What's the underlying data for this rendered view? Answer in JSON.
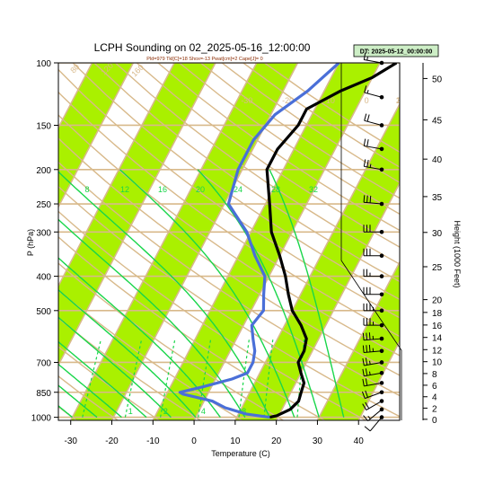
{
  "chart_data": {
    "type": "line",
    "title": "LCPH Sounding on 02_2025-05-16_12:00:00",
    "subtitle": "Pld=979 Tkl[C]=18 Shox=-13 Pwat[cm]=2 Cape[J]= 0",
    "datetime_box": "DT: 2025-05-12_00:00:00",
    "xlabel": "Temperature (C)",
    "ylabel": "P (hPa)",
    "y2label": "Height (1000 Feet)",
    "xlim": [
      -33,
      50
    ],
    "ylim": [
      1020,
      100
    ],
    "y_scale": "log",
    "x_ticks": [
      -30,
      -20,
      -10,
      0,
      10,
      20,
      30,
      40
    ],
    "p_ticks": [
      100,
      150,
      200,
      250,
      300,
      400,
      500,
      700,
      850,
      1000
    ],
    "height_ticks": [
      0,
      2,
      4,
      6,
      8,
      10,
      12,
      14,
      16,
      18,
      20,
      25,
      30,
      35,
      40,
      45,
      50
    ],
    "isotherm_labels": [
      -30,
      -20,
      -10,
      0,
      10,
      20,
      30
    ],
    "dry_adiabat_labels": [
      80,
      120,
      160
    ],
    "moist_adiabat_labels": [
      8,
      12,
      16,
      20,
      24,
      28,
      32
    ],
    "mixing_ratio_labels": [
      1,
      2,
      4,
      8
    ],
    "series": [
      {
        "name": "Temperature",
        "color": "#000000",
        "points": [
          [
            18,
            1000
          ],
          [
            19.5,
            990
          ],
          [
            22,
            950
          ],
          [
            23,
            900
          ],
          [
            22.5,
            850
          ],
          [
            22,
            800
          ],
          [
            20,
            750
          ],
          [
            18,
            700
          ],
          [
            18,
            650
          ],
          [
            17,
            600
          ],
          [
            14,
            550
          ],
          [
            10,
            500
          ],
          [
            7,
            450
          ],
          [
            4,
            400
          ],
          [
            0,
            350
          ],
          [
            -5,
            300
          ],
          [
            -9,
            250
          ],
          [
            -14,
            200
          ],
          [
            -14,
            175
          ],
          [
            -12,
            150
          ],
          [
            -12,
            135
          ],
          [
            -6,
            120
          ],
          [
            0,
            110
          ],
          [
            4,
            100
          ]
        ]
      },
      {
        "name": "Dew point",
        "color": "#4a6fd8",
        "points": [
          [
            18,
            1000
          ],
          [
            12,
            980
          ],
          [
            6,
            940
          ],
          [
            2,
            900
          ],
          [
            -6,
            860
          ],
          [
            -7,
            850
          ],
          [
            -2,
            820
          ],
          [
            4,
            780
          ],
          [
            7,
            750
          ],
          [
            7,
            700
          ],
          [
            6,
            650
          ],
          [
            4,
            600
          ],
          [
            2,
            550
          ],
          [
            3,
            500
          ],
          [
            1,
            450
          ],
          [
            -1,
            400
          ],
          [
            -6,
            350
          ],
          [
            -11,
            300
          ],
          [
            -19,
            250
          ],
          [
            -21,
            200
          ],
          [
            -21,
            165
          ],
          [
            -19,
            140
          ],
          [
            -14,
            120
          ],
          [
            -10,
            100
          ]
        ]
      }
    ],
    "wind_barbs": [
      {
        "p": 1000,
        "dir": 220,
        "speed": 10
      },
      {
        "p": 950,
        "dir": 230,
        "speed": 15
      },
      {
        "p": 900,
        "dir": 240,
        "speed": 20
      },
      {
        "p": 850,
        "dir": 250,
        "speed": 20
      },
      {
        "p": 800,
        "dir": 260,
        "speed": 20
      },
      {
        "p": 750,
        "dir": 260,
        "speed": 25
      },
      {
        "p": 700,
        "dir": 260,
        "speed": 25
      },
      {
        "p": 650,
        "dir": 265,
        "speed": 35
      },
      {
        "p": 600,
        "dir": 265,
        "speed": 35
      },
      {
        "p": 550,
        "dir": 270,
        "speed": 35
      },
      {
        "p": 500,
        "dir": 270,
        "speed": 35
      },
      {
        "p": 450,
        "dir": 270,
        "speed": 30
      },
      {
        "p": 400,
        "dir": 270,
        "speed": 25
      },
      {
        "p": 350,
        "dir": 270,
        "speed": 30
      },
      {
        "p": 300,
        "dir": 270,
        "speed": 30
      },
      {
        "p": 250,
        "dir": 275,
        "speed": 30
      },
      {
        "p": 200,
        "dir": 280,
        "speed": 25
      },
      {
        "p": 175,
        "dir": 280,
        "speed": 20
      },
      {
        "p": 150,
        "dir": 285,
        "speed": 20
      },
      {
        "p": 125,
        "dir": 285,
        "speed": 15
      },
      {
        "p": 100,
        "dir": 280,
        "speed": 15
      }
    ]
  }
}
